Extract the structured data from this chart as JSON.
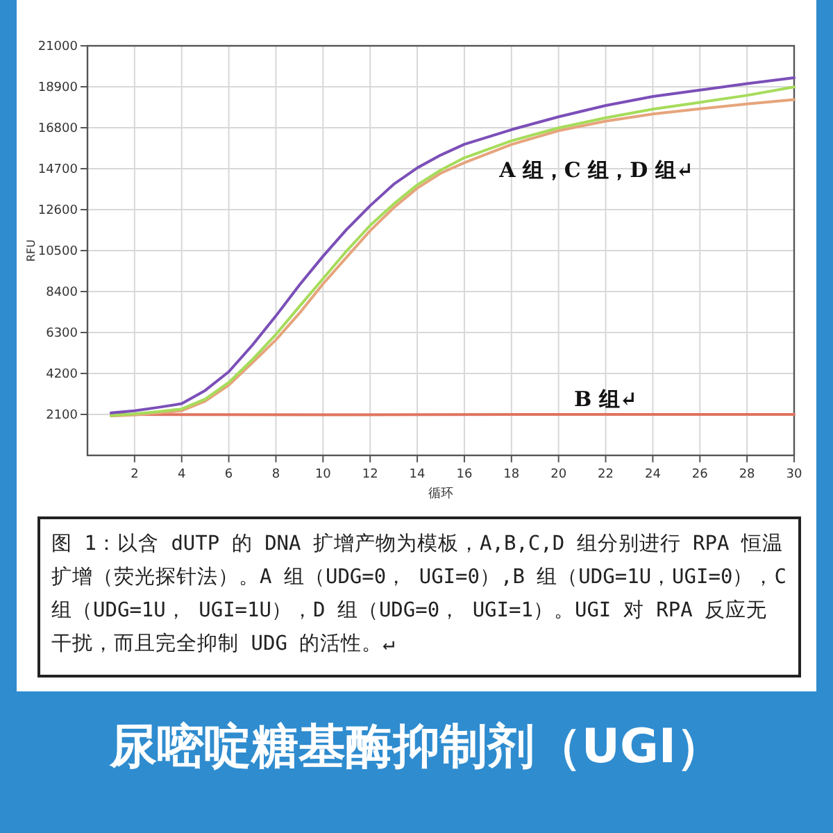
{
  "chart_data": {
    "type": "line",
    "title": "尿嘧啶糖基酶抑制剂（UGI）",
    "xlabel": "循环",
    "ylabel": "RFU",
    "xlim": [
      0,
      30
    ],
    "xticks": [
      2,
      4,
      6,
      8,
      10,
      12,
      14,
      16,
      18,
      20,
      22,
      24,
      26,
      28,
      30
    ],
    "ylim": [
      0,
      21000
    ],
    "yticks": [
      2100,
      4200,
      6300,
      8400,
      10500,
      12600,
      14700,
      16800,
      18900,
      21000
    ],
    "grid": true,
    "marker": "none",
    "line_style": "solid",
    "series": [
      {
        "color": "#7b4fb8",
        "x": [
          1,
          2,
          3,
          4,
          5,
          6,
          7,
          8,
          9,
          10,
          11,
          12,
          13,
          14,
          15,
          16,
          18,
          20,
          22,
          24,
          26,
          28,
          30
        ],
        "values": [
          2180,
          2290,
          2460,
          2650,
          3330,
          4290,
          5650,
          7150,
          8740,
          10210,
          11580,
          12800,
          13900,
          14740,
          15400,
          15950,
          16700,
          17360,
          17940,
          18400,
          18730,
          19060,
          19360
        ]
      },
      {
        "color": "#a6dc5a",
        "x": [
          1,
          2,
          3,
          4,
          5,
          6,
          7,
          8,
          9,
          10,
          11,
          12,
          13,
          14,
          15,
          16,
          18,
          20,
          22,
          24,
          26,
          28,
          30
        ],
        "values": [
          2050,
          2130,
          2240,
          2380,
          2890,
          3740,
          4910,
          6200,
          7640,
          9060,
          10480,
          11790,
          12890,
          13870,
          14630,
          15260,
          16130,
          16790,
          17310,
          17750,
          18100,
          18460,
          18890
        ]
      },
      {
        "color": "#e6a47c",
        "x": [
          1,
          2,
          3,
          4,
          5,
          6,
          7,
          8,
          9,
          10,
          11,
          12,
          13,
          14,
          15,
          16,
          18,
          20,
          22,
          24,
          26,
          28,
          30
        ],
        "values": [
          2020,
          2070,
          2180,
          2290,
          2780,
          3600,
          4750,
          5920,
          7290,
          8790,
          10160,
          11520,
          12700,
          13700,
          14470,
          15010,
          15940,
          16650,
          17140,
          17500,
          17770,
          18020,
          18240
        ]
      },
      {
        "color": "#e0735f",
        "x": [
          1,
          10,
          20,
          30
        ],
        "values": [
          2100,
          2080,
          2100,
          2100
        ]
      }
    ],
    "annotations": [
      "A 组，C 组，D 组↵",
      {
        "text": "B 组↵",
        "x": 22,
        "y": 2100
      },
      "图 1：以含 dUTP 的 DNA 扩增产物为模板，A,B,C,D 组分别进行 RPA 恒温扩增（荧光探针法）。A 组（UDG=0， UGI=0）,B 组（UDG=1U，UGI=0），C 组（UDG=1U， UGI=1U），D 组（UDG=0， UGI=1）。UGI 对 RPA 反应无干扰，而且完全抑制 UDG 的活性。↵"
    ]
  }
}
